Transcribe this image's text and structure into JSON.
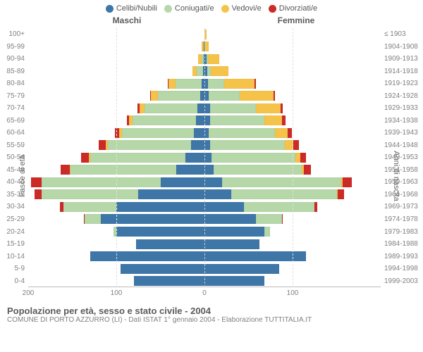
{
  "chart": {
    "type": "population-pyramid",
    "title": "Popolazione per età, sesso e stato civile - 2004",
    "subtitle": "COMUNE DI PORTO AZZURRO (LI) - Dati ISTAT 1° gennaio 2004 - Elaborazione TUTTITALIA.IT",
    "header_left": "Maschi",
    "header_right": "Femmine",
    "y_axis_left_label": "Fasce di età",
    "y_axis_right_label": "Anni di nascita",
    "x_max": 200,
    "x_ticks": [
      200,
      100,
      0,
      100,
      200
    ],
    "x_tick_labels": [
      "200",
      "100",
      "0",
      "100",
      ""
    ],
    "grid_positions": [
      100
    ],
    "colors": {
      "celibi": "#3e76a8",
      "coniugati": "#b6d7a8",
      "vedovi": "#f6c34a",
      "divorziati": "#cc2a27",
      "grid": "#e0e0e0",
      "center": "#cccccc",
      "axis": "#bbbbbb",
      "background": "#ffffff",
      "text": "#5a5a5a",
      "text_muted": "#808080"
    },
    "legend": [
      {
        "label": "Celibi/Nubili",
        "key": "celibi"
      },
      {
        "label": "Coniugati/e",
        "key": "coniugati"
      },
      {
        "label": "Vedovi/e",
        "key": "vedovi"
      },
      {
        "label": "Divorziati/e",
        "key": "divorziati"
      }
    ],
    "age_groups": [
      {
        "age": "100+",
        "birth": "≤ 1903",
        "m": {
          "celibi": 0,
          "coniugati": 0,
          "vedovi": 0,
          "divorziati": 0
        },
        "f": {
          "celibi": 0,
          "coniugati": 0,
          "vedovi": 2,
          "divorziati": 0
        }
      },
      {
        "age": "95-99",
        "birth": "1904-1908",
        "m": {
          "celibi": 1,
          "coniugati": 0,
          "vedovi": 2,
          "divorziati": 0
        },
        "f": {
          "celibi": 0,
          "coniugati": 0,
          "vedovi": 5,
          "divorziati": 0
        }
      },
      {
        "age": "90-94",
        "birth": "1909-1913",
        "m": {
          "celibi": 1,
          "coniugati": 2,
          "vedovi": 4,
          "divorziati": 0
        },
        "f": {
          "celibi": 2,
          "coniugati": 2,
          "vedovi": 13,
          "divorziati": 0
        }
      },
      {
        "age": "85-89",
        "birth": "1914-1918",
        "m": {
          "celibi": 2,
          "coniugati": 7,
          "vedovi": 5,
          "divorziati": 0
        },
        "f": {
          "celibi": 3,
          "coniugati": 4,
          "vedovi": 20,
          "divorziati": 0
        }
      },
      {
        "age": "80-84",
        "birth": "1919-1923",
        "m": {
          "celibi": 3,
          "coniugati": 30,
          "vedovi": 8,
          "divorziati": 1
        },
        "f": {
          "celibi": 4,
          "coniugati": 18,
          "vedovi": 35,
          "divorziati": 1
        }
      },
      {
        "age": "75-79",
        "birth": "1924-1928",
        "m": {
          "celibi": 5,
          "coniugati": 48,
          "vedovi": 8,
          "divorziati": 1
        },
        "f": {
          "celibi": 5,
          "coniugati": 35,
          "vedovi": 38,
          "divorziati": 2
        }
      },
      {
        "age": "70-74",
        "birth": "1929-1933",
        "m": {
          "celibi": 8,
          "coniugati": 60,
          "vedovi": 6,
          "divorziati": 2
        },
        "f": {
          "celibi": 6,
          "coniugati": 52,
          "vedovi": 28,
          "divorziati": 3
        }
      },
      {
        "age": "65-69",
        "birth": "1934-1938",
        "m": {
          "celibi": 10,
          "coniugati": 72,
          "vedovi": 4,
          "divorziati": 2
        },
        "f": {
          "celibi": 6,
          "coniugati": 62,
          "vedovi": 20,
          "divorziati": 4
        }
      },
      {
        "age": "60-64",
        "birth": "1939-1943",
        "m": {
          "celibi": 12,
          "coniugati": 82,
          "vedovi": 3,
          "divorziati": 5
        },
        "f": {
          "celibi": 5,
          "coniugati": 75,
          "vedovi": 14,
          "divorziati": 5
        }
      },
      {
        "age": "55-59",
        "birth": "1944-1948",
        "m": {
          "celibi": 15,
          "coniugati": 95,
          "vedovi": 2,
          "divorziati": 8
        },
        "f": {
          "celibi": 6,
          "coniugati": 85,
          "vedovi": 10,
          "divorziati": 6
        }
      },
      {
        "age": "50-54",
        "birth": "1949-1953",
        "m": {
          "celibi": 22,
          "coniugati": 108,
          "vedovi": 1,
          "divorziati": 9
        },
        "f": {
          "celibi": 8,
          "coniugati": 95,
          "vedovi": 6,
          "divorziati": 6
        }
      },
      {
        "age": "45-49",
        "birth": "1954-1958",
        "m": {
          "celibi": 32,
          "coniugati": 120,
          "vedovi": 1,
          "divorziati": 10
        },
        "f": {
          "celibi": 10,
          "coniugati": 100,
          "vedovi": 3,
          "divorziati": 8
        }
      },
      {
        "age": "40-44",
        "birth": "1959-1963",
        "m": {
          "celibi": 50,
          "coniugati": 135,
          "vedovi": 0,
          "divorziati": 12
        },
        "f": {
          "celibi": 20,
          "coniugati": 135,
          "vedovi": 2,
          "divorziati": 10
        }
      },
      {
        "age": "35-39",
        "birth": "1964-1968",
        "m": {
          "celibi": 75,
          "coniugati": 110,
          "vedovi": 0,
          "divorziati": 8
        },
        "f": {
          "celibi": 30,
          "coniugati": 120,
          "vedovi": 1,
          "divorziati": 7
        }
      },
      {
        "age": "30-34",
        "birth": "1969-1973",
        "m": {
          "celibi": 100,
          "coniugati": 60,
          "vedovi": 0,
          "divorziati": 4
        },
        "f": {
          "celibi": 45,
          "coniugati": 80,
          "vedovi": 0,
          "divorziati": 3
        }
      },
      {
        "age": "25-29",
        "birth": "1974-1978",
        "m": {
          "celibi": 118,
          "coniugati": 18,
          "vedovi": 0,
          "divorziati": 1
        },
        "f": {
          "celibi": 58,
          "coniugati": 30,
          "vedovi": 0,
          "divorziati": 1
        }
      },
      {
        "age": "20-24",
        "birth": "1979-1983",
        "m": {
          "celibi": 100,
          "coniugati": 3,
          "vedovi": 0,
          "divorziati": 0
        },
        "f": {
          "celibi": 68,
          "coniugati": 6,
          "vedovi": 0,
          "divorziati": 0
        }
      },
      {
        "age": "15-19",
        "birth": "1984-1988",
        "m": {
          "celibi": 78,
          "coniugati": 0,
          "vedovi": 0,
          "divorziati": 0
        },
        "f": {
          "celibi": 62,
          "coniugati": 0,
          "vedovi": 0,
          "divorziati": 0
        }
      },
      {
        "age": "10-14",
        "birth": "1989-1993",
        "m": {
          "celibi": 130,
          "coniugati": 0,
          "vedovi": 0,
          "divorziati": 0
        },
        "f": {
          "celibi": 115,
          "coniugati": 0,
          "vedovi": 0,
          "divorziati": 0
        }
      },
      {
        "age": "5-9",
        "birth": "1994-1998",
        "m": {
          "celibi": 95,
          "coniugati": 0,
          "vedovi": 0,
          "divorziati": 0
        },
        "f": {
          "celibi": 85,
          "coniugati": 0,
          "vedovi": 0,
          "divorziati": 0
        }
      },
      {
        "age": "0-4",
        "birth": "1999-2003",
        "m": {
          "celibi": 80,
          "coniugati": 0,
          "vedovi": 0,
          "divorziati": 0
        },
        "f": {
          "celibi": 68,
          "coniugati": 0,
          "vedovi": 0,
          "divorziati": 0
        }
      }
    ]
  }
}
